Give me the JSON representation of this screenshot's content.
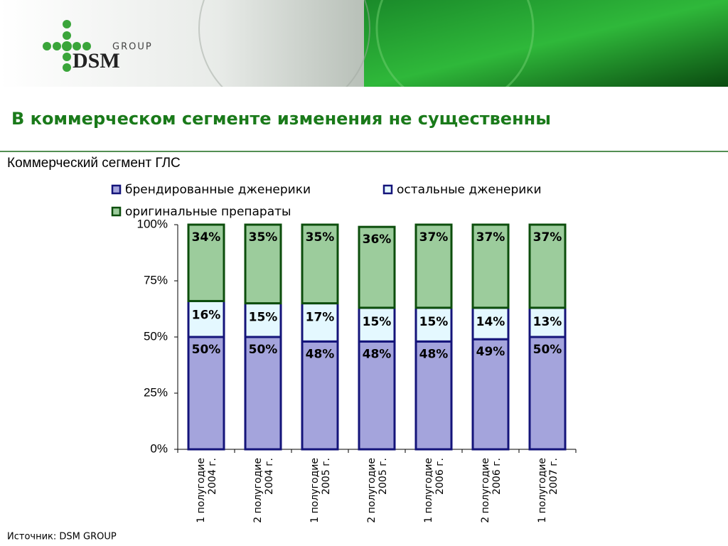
{
  "header": {
    "logo_small": "GROUP",
    "logo_main": "DSM"
  },
  "title": "В коммерческом сегменте изменения не существенны",
  "source": "Источник: DSM GROUP",
  "chart_data": {
    "type": "stacked_bar",
    "subtitle": "Коммерческий сегмент ГЛС",
    "categories": [
      [
        "1 полугодие",
        "2004 г."
      ],
      [
        "2 полугодие",
        "2004 г."
      ],
      [
        "1 полугодие",
        "2005 г."
      ],
      [
        "2 полугодие",
        "2005 г."
      ],
      [
        "1 полугодие",
        "2006 г."
      ],
      [
        "2 полугодие",
        "2006 г."
      ],
      [
        "1 полугодие",
        "2007 г."
      ]
    ],
    "series": [
      {
        "name": "брендированные дженерики",
        "color": "#a4a4dc",
        "border": "#14147a",
        "values": [
          50,
          50,
          48,
          48,
          48,
          49,
          50
        ],
        "value_labels": [
          "50%",
          "50%",
          "48%",
          "48%",
          "48%",
          "49%",
          "50%"
        ]
      },
      {
        "name": "остальные дженерики",
        "color": "#e4f8ff",
        "border": "#14147a",
        "values": [
          16,
          15,
          17,
          15,
          15,
          14,
          13
        ],
        "value_labels": [
          "16%",
          "15%",
          "17%",
          "15%",
          "15%",
          "14%",
          "13%"
        ]
      },
      {
        "name": "оригинальные препараты",
        "color": "#9ccc9c",
        "border": "#0c4e0c",
        "values": [
          34,
          35,
          35,
          36,
          37,
          37,
          37
        ],
        "value_labels": [
          "34%",
          "35%",
          "35%",
          "36%",
          "37%",
          "37%",
          "37%"
        ]
      }
    ],
    "ylim": [
      0,
      100
    ],
    "yticks": [
      {
        "value": 0,
        "label": "0%"
      },
      {
        "value": 25,
        "label": "25%"
      },
      {
        "value": 50,
        "label": "50%"
      },
      {
        "value": 75,
        "label": "75%"
      },
      {
        "value": 100,
        "label": "100%"
      }
    ],
    "legend": "top"
  }
}
